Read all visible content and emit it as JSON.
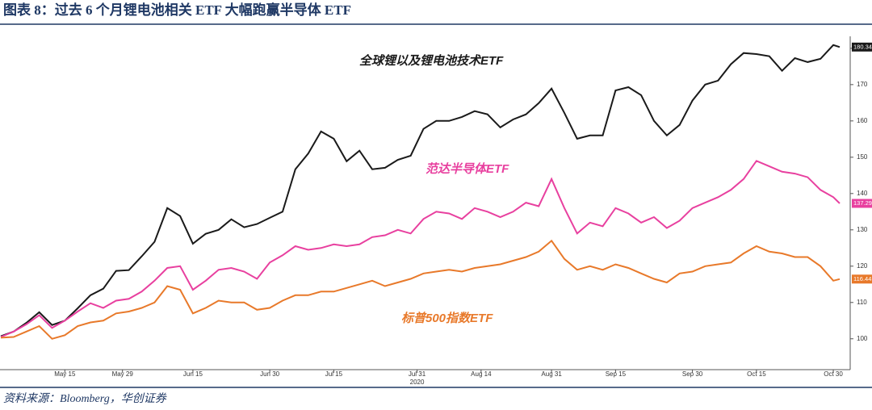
{
  "title": "图表 8：过去 6 个月锂电池相关 ETF 大幅跑赢半导体 ETF",
  "source": "资料来源：Bloomberg，华创证券",
  "chart_data": {
    "type": "line",
    "xlabel": "2020",
    "x": [
      0,
      2,
      4,
      6,
      8,
      10,
      12,
      14,
      16,
      18,
      20,
      22,
      24,
      26,
      28,
      30,
      32,
      34,
      36,
      38,
      40,
      42,
      44,
      46,
      48,
      50,
      52,
      54,
      56,
      58,
      60,
      62,
      64,
      66,
      68,
      70,
      72,
      74,
      76,
      78,
      80,
      82,
      84,
      86,
      88,
      90,
      92,
      94,
      96,
      98,
      100,
      102,
      104,
      106,
      108,
      110,
      112,
      114,
      116,
      118,
      120,
      122,
      124,
      126,
      128,
      130,
      131
    ],
    "xlim": [
      0,
      131
    ],
    "xticks": [
      {
        "value": 10,
        "label": "May 15"
      },
      {
        "value": 19,
        "label": "May 29"
      },
      {
        "value": 30,
        "label": "Jun 15"
      },
      {
        "value": 42,
        "label": "Jun 30"
      },
      {
        "value": 52,
        "label": "Jul 15"
      },
      {
        "value": 65,
        "label": "Jul 31"
      },
      {
        "value": 75,
        "label": "Aug 14"
      },
      {
        "value": 86,
        "label": "Aug 31"
      },
      {
        "value": 96,
        "label": "Sep 15"
      },
      {
        "value": 108,
        "label": "Sep 30"
      },
      {
        "value": 118,
        "label": "Oct 15"
      },
      {
        "value": 130,
        "label": "Oct 30"
      }
    ],
    "ylim": [
      91.5,
      183.3
    ],
    "yticks": [
      100,
      110,
      120,
      130,
      140,
      150,
      160,
      170,
      180
    ],
    "series": [
      {
        "name": "全球锂以及锂电池技术ETF",
        "color": "#1a1a1a",
        "values": [
          100.7,
          102,
          104.4,
          107.3,
          103.8,
          105,
          108.4,
          112,
          113.8,
          118.7,
          118.9,
          122.7,
          126.7,
          136,
          133.8,
          126.2,
          128.9,
          130,
          132.9,
          130.7,
          131.6,
          133.3,
          135,
          146.7,
          151,
          157.1,
          155.1,
          148.9,
          151.8,
          146.7,
          147.1,
          149.3,
          150.4,
          157.8,
          160,
          160,
          161.1,
          162.7,
          161.8,
          158.2,
          160.4,
          161.8,
          164.9,
          168.9,
          162.2,
          155.1,
          156,
          156,
          168.4,
          169.3,
          167.1,
          160,
          156,
          158.9,
          165.6,
          170,
          171.1,
          175.6,
          178.7,
          178.4,
          177.8,
          173.8,
          177.3,
          176.2,
          177.1,
          180.9,
          180.34
        ]
      },
      {
        "name": "范达半导体ETF",
        "color": "#e8409f",
        "values": [
          100.5,
          102,
          104,
          106.5,
          103,
          105,
          107.5,
          109.8,
          108.5,
          110.5,
          111,
          113,
          116,
          119.5,
          120,
          113.5,
          116,
          119,
          119.5,
          118.5,
          116.5,
          121,
          123,
          125.5,
          124.5,
          125,
          126,
          125.5,
          126,
          128,
          128.5,
          130,
          129,
          133,
          135,
          134.5,
          133,
          136,
          135,
          133.5,
          135,
          137.5,
          136.5,
          144,
          136,
          129,
          132,
          131,
          136,
          134.5,
          132,
          133.5,
          130.5,
          132.5,
          136,
          137.5,
          139,
          141,
          144,
          149,
          147.5,
          146,
          145.5,
          144.5,
          141,
          139,
          137.29
        ]
      },
      {
        "name": "标普500指数ETF",
        "color": "#e8792a",
        "values": [
          100.3,
          100.5,
          102,
          103.5,
          100,
          101,
          103.5,
          104.5,
          105,
          107,
          107.5,
          108.5,
          110,
          114.5,
          113.5,
          107,
          108.5,
          110.5,
          110,
          110,
          108,
          108.5,
          110.5,
          112,
          112,
          113,
          113,
          114,
          115,
          116,
          114.5,
          115.5,
          116.5,
          118,
          118.5,
          119,
          118.5,
          119.5,
          120,
          120.5,
          121.5,
          122.5,
          124,
          127,
          122,
          119,
          120,
          119,
          120.5,
          119.5,
          118,
          116.5,
          115.5,
          118,
          118.5,
          120,
          120.5,
          121,
          123.5,
          125.5,
          124,
          123.5,
          122.5,
          122.5,
          120,
          116,
          116.44
        ]
      }
    ]
  }
}
